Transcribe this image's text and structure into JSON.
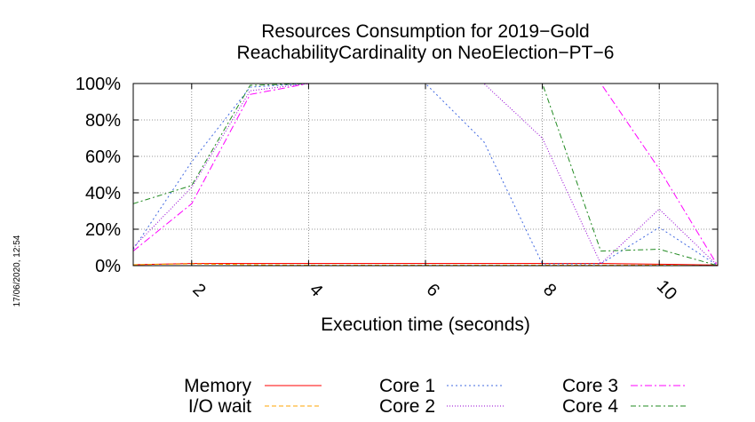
{
  "chart_data": {
    "type": "line",
    "title": "Resources Consumption for 2019−Gold",
    "subtitle": "ReachabilityCardinality on NeoElection−PT−6",
    "xlabel": "Execution time (seconds)",
    "ylabel": "",
    "timestamp": "17/06/2020, 12:54",
    "xlim": [
      1,
      11
    ],
    "ylim": [
      0,
      100
    ],
    "grid": true,
    "legend_position": "bottom",
    "x_ticks": [
      {
        "value": 2,
        "label": "2"
      },
      {
        "value": 4,
        "label": "4"
      },
      {
        "value": 6,
        "label": "6"
      },
      {
        "value": 8,
        "label": "8"
      },
      {
        "value": 10,
        "label": "10"
      }
    ],
    "y_ticks": [
      {
        "value": 0,
        "label": "0%"
      },
      {
        "value": 20,
        "label": "20%"
      },
      {
        "value": 40,
        "label": "40%"
      },
      {
        "value": 60,
        "label": "60%"
      },
      {
        "value": 80,
        "label": "80%"
      },
      {
        "value": 100,
        "label": "100%"
      }
    ],
    "series": [
      {
        "name": "Memory",
        "color": "#ff0000",
        "dash": "",
        "x": [
          1,
          2,
          3,
          4,
          5,
          6,
          7,
          8,
          9,
          10,
          11
        ],
        "values": [
          0.5,
          1.2,
          1.2,
          1.2,
          1.2,
          1.2,
          1.2,
          1.2,
          1.2,
          0.8,
          0.3
        ]
      },
      {
        "name": "I/O wait",
        "color": "#ffa500",
        "dash": "5,3",
        "x": [
          1,
          2,
          3,
          4,
          5,
          6,
          7,
          8,
          9,
          10,
          11
        ],
        "values": [
          0.5,
          1,
          0.5,
          0.3,
          0.3,
          0.3,
          0.3,
          0.3,
          0.3,
          0.3,
          0
        ]
      },
      {
        "name": "Core 1",
        "color": "#4169e1",
        "dash": "2,3",
        "x": [
          1,
          2,
          3,
          4,
          5,
          6,
          7,
          8,
          9,
          10,
          11
        ],
        "values": [
          9,
          57,
          98,
          100,
          100,
          100,
          68,
          1,
          1,
          21,
          0
        ]
      },
      {
        "name": "Core 2",
        "color": "#9400d3",
        "dash": "1,2",
        "x": [
          1,
          2,
          3,
          4,
          5,
          6,
          7,
          8,
          9,
          10,
          11
        ],
        "values": [
          10,
          43,
          96,
          100,
          100,
          100,
          100,
          70,
          1,
          31,
          0
        ]
      },
      {
        "name": "Core 3",
        "color": "#ff00ff",
        "dash": "8,3,2,3",
        "x": [
          1,
          2,
          3,
          4,
          5,
          6,
          7,
          8,
          9,
          10,
          11
        ],
        "values": [
          8,
          34,
          94,
          100,
          100,
          100,
          100,
          100,
          100,
          53,
          0
        ]
      },
      {
        "name": "Core 4",
        "color": "#228b22",
        "dash": "6,3,2,3",
        "x": [
          1,
          2,
          3,
          4,
          5,
          6,
          7,
          8,
          9,
          10,
          11
        ],
        "values": [
          34,
          44,
          99,
          100,
          100,
          100,
          100,
          100,
          8,
          9,
          0
        ]
      }
    ]
  }
}
